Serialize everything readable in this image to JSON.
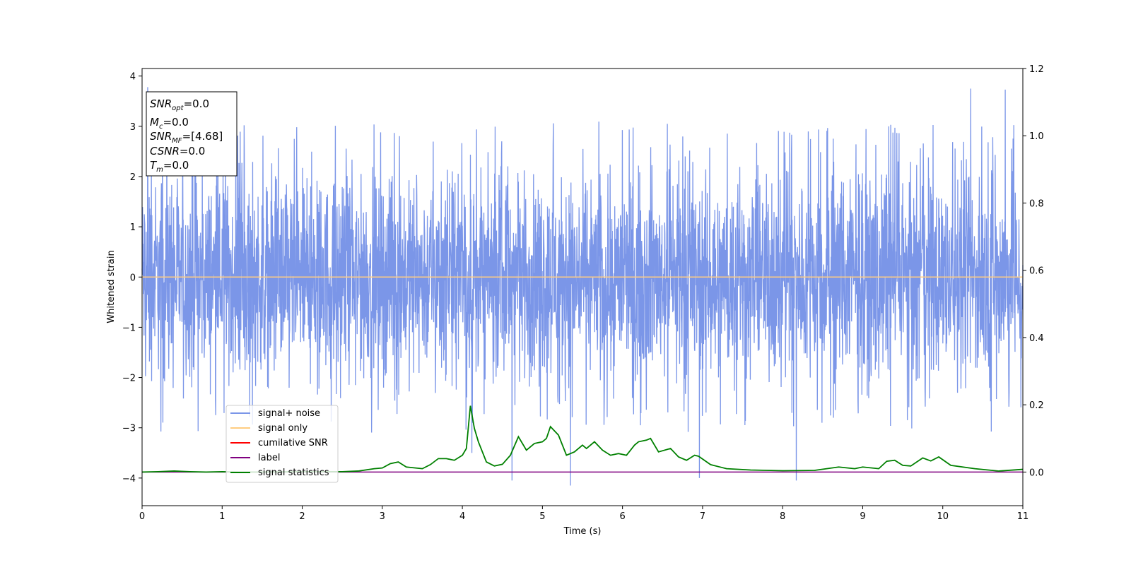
{
  "chart_data": {
    "type": "line",
    "xlabel": "Time (s)",
    "ylabel": "Whitened strain",
    "xlim": [
      0,
      11
    ],
    "ylim": [
      -4.55,
      4.15
    ],
    "y2lim": [
      -0.1,
      1.2
    ],
    "x_ticks": [
      "0",
      "1",
      "2",
      "3",
      "4",
      "5",
      "6",
      "7",
      "8",
      "9",
      "10",
      "11"
    ],
    "y_ticks": [
      "4",
      "3",
      "2",
      "1",
      "0",
      "−1",
      "−2",
      "−3",
      "−4"
    ],
    "y_tick_values": [
      4,
      3,
      2,
      1,
      0,
      -1,
      -2,
      -3,
      -4
    ],
    "y2_ticks": [
      "1.2",
      "1.0",
      "0.8",
      "0.6",
      "0.4",
      "0.2",
      "0.0"
    ],
    "y2_tick_values": [
      1.2,
      1.0,
      0.8,
      0.6,
      0.4,
      0.2,
      0.0
    ],
    "grid": false,
    "legend_position": "lower-left",
    "info_box": {
      "line1_main": "SNR",
      "line1_sub": "opt",
      "line1_val": "=0.0",
      "line2_main": "M",
      "line2_sub": "c",
      "line2_val": "=0.0",
      "line3_main": "SNR",
      "line3_sub": "MF",
      "line3_val": "=[4.68]",
      "line4_main": "CSNR",
      "line4_val": "=0.0",
      "line5_main": "T",
      "line5_sub": "m",
      "line5_val": "=0.0"
    },
    "series": [
      {
        "name": "signal+ noise",
        "axis": "left",
        "color": "#7b96e8",
        "description_values": {
          "typical_envelope": [
            -1.9,
            2.0
          ],
          "peaks": [
            [
              0.07,
              3.78
            ],
            [
              1.9,
              2.75
            ],
            [
              4.12,
              -3.5
            ],
            [
              4.62,
              -4.05
            ],
            [
              5.35,
              -4.15
            ],
            [
              6.96,
              -4.0
            ],
            [
              8.17,
              -4.05
            ],
            [
              10.35,
              3.75
            ],
            [
              10.78,
              3.73
            ]
          ]
        }
      },
      {
        "name": "signal only",
        "axis": "left",
        "color": "#ffcc80",
        "x": [
          0,
          11
        ],
        "values": [
          0,
          0
        ]
      },
      {
        "name": "cumilative SNR",
        "axis": "right",
        "color": "#ff0000",
        "x": [
          0,
          11
        ],
        "values": [
          0,
          0
        ]
      },
      {
        "name": "label",
        "axis": "right",
        "color": "#800080",
        "x": [
          0,
          11
        ],
        "values": [
          0,
          0
        ]
      },
      {
        "name": "signal statistics",
        "axis": "right",
        "color": "#008000",
        "x": [
          0,
          0.2,
          0.4,
          0.6,
          0.8,
          1.0,
          1.2,
          1.5,
          2.0,
          2.5,
          2.7,
          2.9,
          3.0,
          3.1,
          3.2,
          3.3,
          3.5,
          3.6,
          3.7,
          3.8,
          3.9,
          4.0,
          4.05,
          4.1,
          4.15,
          4.2,
          4.3,
          4.4,
          4.5,
          4.6,
          4.7,
          4.8,
          4.9,
          5.0,
          5.05,
          5.1,
          5.2,
          5.3,
          5.4,
          5.5,
          5.55,
          5.65,
          5.75,
          5.85,
          5.95,
          6.05,
          6.15,
          6.2,
          6.3,
          6.35,
          6.45,
          6.6,
          6.7,
          6.8,
          6.9,
          6.95,
          7.1,
          7.3,
          7.6,
          8.0,
          8.4,
          8.7,
          8.9,
          9.0,
          9.2,
          9.3,
          9.4,
          9.5,
          9.6,
          9.75,
          9.85,
          9.95,
          10.1,
          10.4,
          10.7,
          11.0
        ],
        "values": [
          0.0,
          0.001,
          0.003,
          0.001,
          0.0,
          0.001,
          0.0,
          0.0,
          0.001,
          0.001,
          0.003,
          0.01,
          0.012,
          0.025,
          0.03,
          0.015,
          0.01,
          0.022,
          0.04,
          0.04,
          0.035,
          0.05,
          0.07,
          0.197,
          0.13,
          0.09,
          0.03,
          0.018,
          0.023,
          0.05,
          0.105,
          0.065,
          0.085,
          0.09,
          0.1,
          0.135,
          0.11,
          0.05,
          0.06,
          0.08,
          0.07,
          0.09,
          0.065,
          0.05,
          0.055,
          0.05,
          0.08,
          0.09,
          0.095,
          0.1,
          0.06,
          0.07,
          0.045,
          0.035,
          0.05,
          0.047,
          0.022,
          0.01,
          0.006,
          0.004,
          0.005,
          0.015,
          0.01,
          0.015,
          0.01,
          0.032,
          0.035,
          0.02,
          0.018,
          0.042,
          0.033,
          0.045,
          0.02,
          0.01,
          0.003,
          0.008
        ]
      }
    ]
  }
}
